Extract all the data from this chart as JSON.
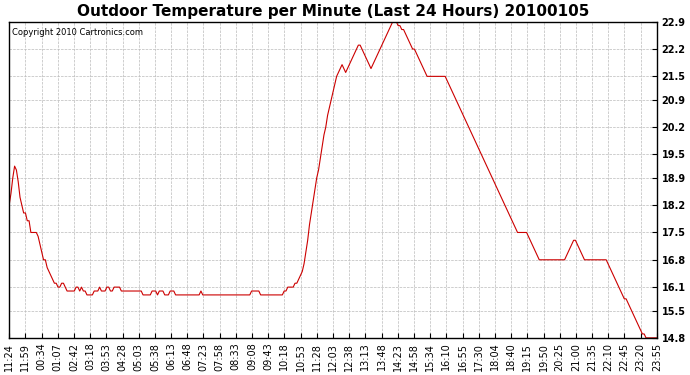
{
  "title": "Outdoor Temperature per Minute (Last 24 Hours) 20100105",
  "copyright_text": "Copyright 2010 Cartronics.com",
  "yticks": [
    14.8,
    15.5,
    16.1,
    16.8,
    17.5,
    18.2,
    18.9,
    19.5,
    20.2,
    20.9,
    21.5,
    22.2,
    22.9
  ],
  "ymin": 14.8,
  "ymax": 22.9,
  "line_color": "#cc0000",
  "background_color": "#ffffff",
  "grid_color": "#bbbbbb",
  "title_fontsize": 11,
  "tick_fontsize": 7,
  "copyright_fontsize": 6,
  "xtick_labels": [
    "11:24",
    "11:59",
    "00:34",
    "01:07",
    "02:42",
    "03:18",
    "03:53",
    "04:28",
    "05:03",
    "05:38",
    "06:13",
    "06:48",
    "07:23",
    "07:58",
    "08:33",
    "09:08",
    "09:43",
    "10:18",
    "10:53",
    "11:28",
    "12:03",
    "12:38",
    "13:13",
    "13:48",
    "14:23",
    "14:58",
    "15:34",
    "16:10",
    "16:55",
    "17:30",
    "18:04",
    "18:40",
    "19:15",
    "19:50",
    "20:25",
    "21:00",
    "21:35",
    "22:10",
    "22:45",
    "23:20",
    "23:55"
  ],
  "temperature_data": [
    18.2,
    18.5,
    18.9,
    19.2,
    19.1,
    18.8,
    18.4,
    18.2,
    18.0,
    18.0,
    17.8,
    17.8,
    17.5,
    17.5,
    17.5,
    17.5,
    17.4,
    17.2,
    17.0,
    16.8,
    16.8,
    16.6,
    16.5,
    16.4,
    16.3,
    16.2,
    16.2,
    16.1,
    16.1,
    16.2,
    16.2,
    16.1,
    16.0,
    16.0,
    16.0,
    16.0,
    16.0,
    16.1,
    16.1,
    16.0,
    16.1,
    16.0,
    16.0,
    15.9,
    15.9,
    15.9,
    15.9,
    16.0,
    16.0,
    16.0,
    16.1,
    16.0,
    16.0,
    16.0,
    16.1,
    16.1,
    16.0,
    16.0,
    16.1,
    16.1,
    16.1,
    16.1,
    16.0,
    16.0,
    16.0,
    16.0,
    16.0,
    16.0,
    16.0,
    16.0,
    16.0,
    16.0,
    16.0,
    16.0,
    15.9,
    15.9,
    15.9,
    15.9,
    15.9,
    16.0,
    16.0,
    16.0,
    15.9,
    16.0,
    16.0,
    16.0,
    15.9,
    15.9,
    15.9,
    16.0,
    16.0,
    16.0,
    15.9,
    15.9,
    15.9,
    15.9,
    15.9,
    15.9,
    15.9,
    15.9,
    15.9,
    15.9,
    15.9,
    15.9,
    15.9,
    15.9,
    16.0,
    15.9,
    15.9,
    15.9,
    15.9,
    15.9,
    15.9,
    15.9,
    15.9,
    15.9,
    15.9,
    15.9,
    15.9,
    15.9,
    15.9,
    15.9,
    15.9,
    15.9,
    15.9,
    15.9,
    15.9,
    15.9,
    15.9,
    15.9,
    15.9,
    15.9,
    15.9,
    15.9,
    16.0,
    16.0,
    16.0,
    16.0,
    16.0,
    15.9,
    15.9,
    15.9,
    15.9,
    15.9,
    15.9,
    15.9,
    15.9,
    15.9,
    15.9,
    15.9,
    15.9,
    15.9,
    16.0,
    16.0,
    16.1,
    16.1,
    16.1,
    16.1,
    16.2,
    16.2,
    16.3,
    16.4,
    16.5,
    16.7,
    17.0,
    17.3,
    17.7,
    18.0,
    18.3,
    18.6,
    18.9,
    19.1,
    19.4,
    19.7,
    20.0,
    20.2,
    20.5,
    20.7,
    20.9,
    21.1,
    21.3,
    21.5,
    21.6,
    21.7,
    21.8,
    21.7,
    21.6,
    21.7,
    21.8,
    21.9,
    22.0,
    22.1,
    22.2,
    22.3,
    22.3,
    22.2,
    22.1,
    22.0,
    21.9,
    21.8,
    21.7,
    21.8,
    21.9,
    22.0,
    22.1,
    22.2,
    22.3,
    22.4,
    22.5,
    22.6,
    22.7,
    22.8,
    22.9,
    22.9,
    22.9,
    22.8,
    22.8,
    22.7,
    22.7,
    22.6,
    22.5,
    22.4,
    22.3,
    22.2,
    22.2,
    22.1,
    22.0,
    21.9,
    21.8,
    21.7,
    21.6,
    21.5,
    21.5,
    21.5,
    21.5,
    21.5,
    21.5,
    21.5,
    21.5,
    21.5,
    21.5,
    21.5,
    21.4,
    21.3,
    21.2,
    21.1,
    21.0,
    20.9,
    20.8,
    20.7,
    20.6,
    20.5,
    20.4,
    20.3,
    20.2,
    20.1,
    20.0,
    19.9,
    19.8,
    19.7,
    19.6,
    19.5,
    19.4,
    19.3,
    19.2,
    19.1,
    19.0,
    18.9,
    18.8,
    18.7,
    18.6,
    18.5,
    18.4,
    18.3,
    18.2,
    18.1,
    18.0,
    17.9,
    17.8,
    17.7,
    17.6,
    17.5,
    17.5,
    17.5,
    17.5,
    17.5,
    17.5,
    17.4,
    17.3,
    17.2,
    17.1,
    17.0,
    16.9,
    16.8,
    16.8,
    16.8,
    16.8,
    16.8,
    16.8,
    16.8,
    16.8,
    16.8,
    16.8,
    16.8,
    16.8,
    16.8,
    16.8,
    16.8,
    16.9,
    17.0,
    17.1,
    17.2,
    17.3,
    17.3,
    17.2,
    17.1,
    17.0,
    16.9,
    16.8,
    16.8,
    16.8,
    16.8,
    16.8,
    16.8,
    16.8,
    16.8,
    16.8,
    16.8,
    16.8,
    16.8,
    16.8,
    16.7,
    16.6,
    16.5,
    16.4,
    16.3,
    16.2,
    16.1,
    16.0,
    15.9,
    15.8,
    15.8,
    15.7,
    15.6,
    15.5,
    15.4,
    15.3,
    15.2,
    15.1,
    15.0,
    14.9,
    14.9,
    14.8,
    14.8,
    14.8,
    14.8,
    14.8,
    14.8,
    14.8
  ]
}
